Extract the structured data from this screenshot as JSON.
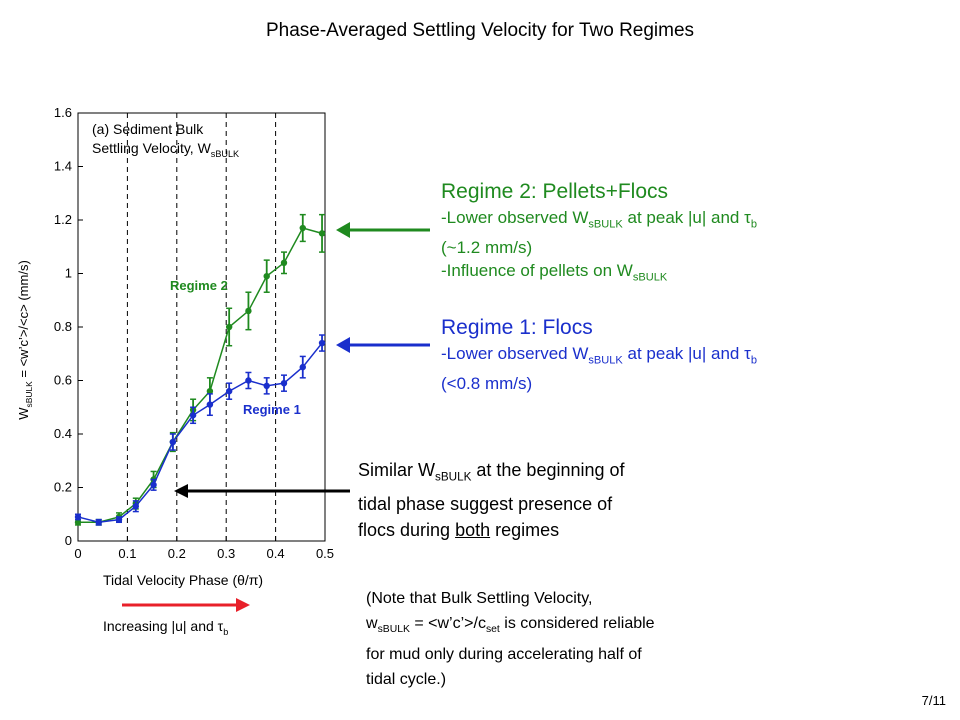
{
  "slide_title": "Phase-Averaged Settling Velocity for Two Regimes",
  "page_number": "7/11",
  "regime2_note": {
    "heading": "Regime 2: Pellets+Flocs",
    "line1_prefix": "-Lower observed W",
    "line1_sub": "sBULK",
    "line1_mid": " at peak |u| and τ",
    "line1_sub2": "b",
    "line2": "(~1.2 mm/s)",
    "line3_prefix": "-Influence of pellets on W",
    "line3_sub": "sBULK"
  },
  "regime1_note": {
    "heading": "Regime 1: Flocs",
    "line1_prefix": "-Lower observed W",
    "line1_sub": "sBULK",
    "line1_mid": " at peak |u| and τ",
    "line1_sub2": "b",
    "line2": "(<0.8 mm/s)"
  },
  "similar_note": {
    "line1_prefix": "Similar W",
    "line1_sub": "sBULK",
    "line1_suffix": " at the beginning of",
    "line2": "tidal phase suggest presence of",
    "line3_prefix": "flocs during ",
    "line3_underlined": "both",
    "line3_suffix": " regimes"
  },
  "bulk_note": {
    "line1": "(Note that Bulk Settling Velocity,",
    "line2_prefix": "w",
    "line2_sub": "sBULK",
    "line2_mid": " = <w’c’>/c",
    "line2_sub2": "set",
    "line2_suffix": " is considered reliable",
    "line3": "for mud only during accelerating half of",
    "line4": "tidal cycle.)"
  },
  "increasing_label": {
    "prefix": "Increasing |u| and τ",
    "sub": "b"
  },
  "colors": {
    "regime2": "#1f8a1f",
    "regime1": "#1a2fcc",
    "red_arrow": "#e8202a",
    "black_arrow": "#000000"
  },
  "chart_data": {
    "type": "line",
    "panel_label_line1": "(a) Sediment Bulk",
    "panel_label_line2_prefix": "Settling Velocity, W",
    "panel_label_line2_sub": "sBULK",
    "xlabel": "Tidal Velocity Phase (θ/π)",
    "ylabel_prefix": "W",
    "ylabel_sub": "sBULK",
    "ylabel_suffix": " = <w’c’>/<c> (mm/s)",
    "xlim": [
      0,
      0.5
    ],
    "ylim": [
      0,
      1.6
    ],
    "xticks": [
      "0",
      "0.1",
      "0.2",
      "0.3",
      "0.4",
      "0.5"
    ],
    "yticks": [
      "0",
      "0.2",
      "0.4",
      "0.6",
      "0.8",
      "1",
      "1.2",
      "1.4",
      "1.6"
    ],
    "grid": "vertical dashed at x = 0.1, 0.2, 0.3, 0.4",
    "series": [
      {
        "name": "Regime 2",
        "color": "#1f8a1f",
        "x": [
          0.0,
          0.042,
          0.083,
          0.117,
          0.153,
          0.192,
          0.233,
          0.267,
          0.306,
          0.345,
          0.382,
          0.417,
          0.455,
          0.494
        ],
        "y": [
          0.07,
          0.07,
          0.09,
          0.14,
          0.23,
          0.37,
          0.49,
          0.56,
          0.8,
          0.86,
          0.99,
          1.04,
          1.17,
          1.15
        ],
        "err": [
          0.01,
          0.01,
          0.015,
          0.02,
          0.03,
          0.035,
          0.04,
          0.05,
          0.07,
          0.07,
          0.06,
          0.04,
          0.05,
          0.07
        ]
      },
      {
        "name": "Regime 1",
        "color": "#1a2fcc",
        "x": [
          0.0,
          0.042,
          0.083,
          0.117,
          0.153,
          0.192,
          0.233,
          0.267,
          0.306,
          0.345,
          0.382,
          0.417,
          0.455,
          0.494
        ],
        "y": [
          0.09,
          0.07,
          0.08,
          0.13,
          0.21,
          0.37,
          0.47,
          0.51,
          0.56,
          0.6,
          0.58,
          0.59,
          0.65,
          0.74
        ],
        "err": [
          0.01,
          0.01,
          0.01,
          0.02,
          0.02,
          0.03,
          0.03,
          0.04,
          0.03,
          0.03,
          0.03,
          0.03,
          0.04,
          0.03
        ]
      }
    ],
    "annotations": [
      "Regime 2",
      "Regime 1"
    ]
  }
}
